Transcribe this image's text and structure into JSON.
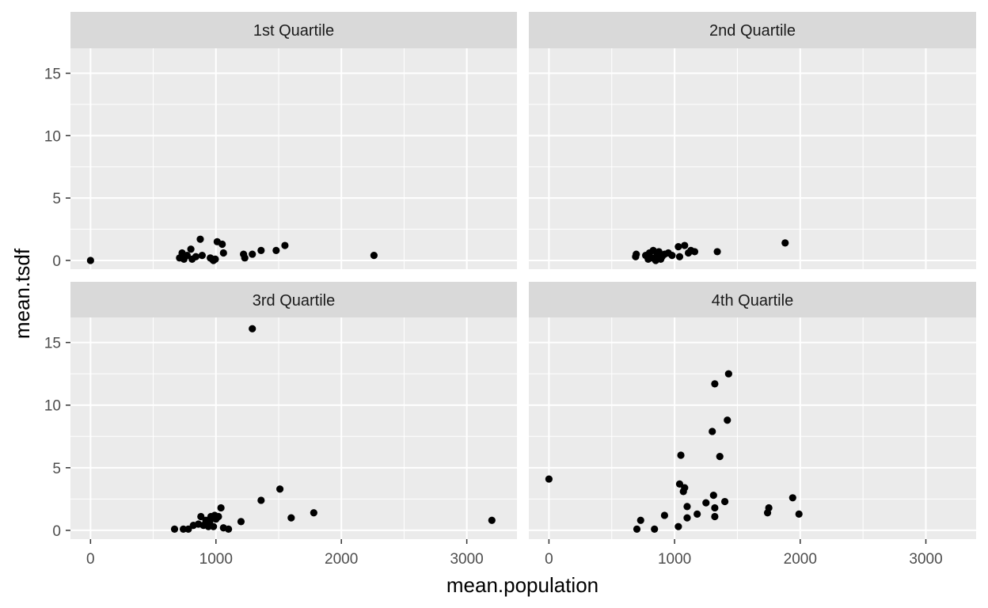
{
  "chart_data": {
    "type": "scatter",
    "xlabel": "mean.population",
    "ylabel": "mean.tsdf",
    "xlim": [
      -160,
      3400
    ],
    "ylim": [
      -0.7,
      17
    ],
    "x_ticks": [
      0,
      1000,
      2000,
      3000
    ],
    "y_ticks": [
      0,
      5,
      10,
      15
    ],
    "colors": {
      "panel_bg": "#ebebeb",
      "strip_bg": "#d9d9d9",
      "grid": "#ffffff",
      "point": "#000000"
    },
    "panels": [
      {
        "title": "1st Quartile",
        "points": [
          [
            0,
            0.0
          ],
          [
            710,
            0.2
          ],
          [
            730,
            0.6
          ],
          [
            745,
            0.1
          ],
          [
            770,
            0.4
          ],
          [
            800,
            0.9
          ],
          [
            810,
            0.1
          ],
          [
            840,
            0.3
          ],
          [
            875,
            1.7
          ],
          [
            890,
            0.4
          ],
          [
            955,
            0.2
          ],
          [
            970,
            0.1
          ],
          [
            980,
            0.0
          ],
          [
            995,
            0.1
          ],
          [
            1010,
            1.5
          ],
          [
            1050,
            1.3
          ],
          [
            1060,
            0.6
          ],
          [
            1220,
            0.5
          ],
          [
            1230,
            0.2
          ],
          [
            1290,
            0.5
          ],
          [
            1360,
            0.8
          ],
          [
            1480,
            0.8
          ],
          [
            1550,
            1.2
          ],
          [
            2260,
            0.4
          ]
        ]
      },
      {
        "title": "2nd Quartile",
        "points": [
          [
            690,
            0.3
          ],
          [
            695,
            0.5
          ],
          [
            770,
            0.4
          ],
          [
            790,
            0.1
          ],
          [
            800,
            0.6
          ],
          [
            820,
            0.2
          ],
          [
            830,
            0.8
          ],
          [
            850,
            0.0
          ],
          [
            860,
            0.4
          ],
          [
            875,
            0.7
          ],
          [
            890,
            0.1
          ],
          [
            900,
            0.3
          ],
          [
            920,
            0.5
          ],
          [
            950,
            0.6
          ],
          [
            980,
            0.4
          ],
          [
            1030,
            1.1
          ],
          [
            1040,
            0.3
          ],
          [
            1080,
            1.2
          ],
          [
            1110,
            0.6
          ],
          [
            1130,
            0.8
          ],
          [
            1160,
            0.7
          ],
          [
            1340,
            0.7
          ],
          [
            1880,
            1.4
          ]
        ]
      },
      {
        "title": "3rd Quartile",
        "points": [
          [
            670,
            0.1
          ],
          [
            740,
            0.1
          ],
          [
            780,
            0.1
          ],
          [
            820,
            0.4
          ],
          [
            860,
            0.5
          ],
          [
            880,
            1.1
          ],
          [
            900,
            0.4
          ],
          [
            920,
            0.8
          ],
          [
            940,
            0.3
          ],
          [
            950,
            0.7
          ],
          [
            960,
            1.1
          ],
          [
            980,
            0.3
          ],
          [
            990,
            1.2
          ],
          [
            1000,
            0.9
          ],
          [
            1020,
            1.1
          ],
          [
            1040,
            1.8
          ],
          [
            1060,
            0.2
          ],
          [
            1100,
            0.1
          ],
          [
            1200,
            0.7
          ],
          [
            1290,
            16.1
          ],
          [
            1360,
            2.4
          ],
          [
            1510,
            3.3
          ],
          [
            1600,
            1.0
          ],
          [
            1780,
            1.4
          ],
          [
            3200,
            0.8
          ]
        ]
      },
      {
        "title": "4th Quartile",
        "points": [
          [
            0,
            4.1
          ],
          [
            700,
            0.1
          ],
          [
            730,
            0.8
          ],
          [
            840,
            0.1
          ],
          [
            920,
            1.2
          ],
          [
            1030,
            0.3
          ],
          [
            1040,
            3.7
          ],
          [
            1050,
            6.0
          ],
          [
            1070,
            3.1
          ],
          [
            1080,
            3.4
          ],
          [
            1100,
            1.9
          ],
          [
            1100,
            1.0
          ],
          [
            1180,
            1.3
          ],
          [
            1250,
            2.2
          ],
          [
            1300,
            7.9
          ],
          [
            1310,
            2.8
          ],
          [
            1320,
            11.7
          ],
          [
            1320,
            1.1
          ],
          [
            1320,
            1.8
          ],
          [
            1360,
            5.9
          ],
          [
            1400,
            2.3
          ],
          [
            1420,
            8.8
          ],
          [
            1430,
            12.5
          ],
          [
            1740,
            1.4
          ],
          [
            1750,
            1.8
          ],
          [
            1940,
            2.6
          ],
          [
            1990,
            1.3
          ]
        ]
      }
    ]
  }
}
